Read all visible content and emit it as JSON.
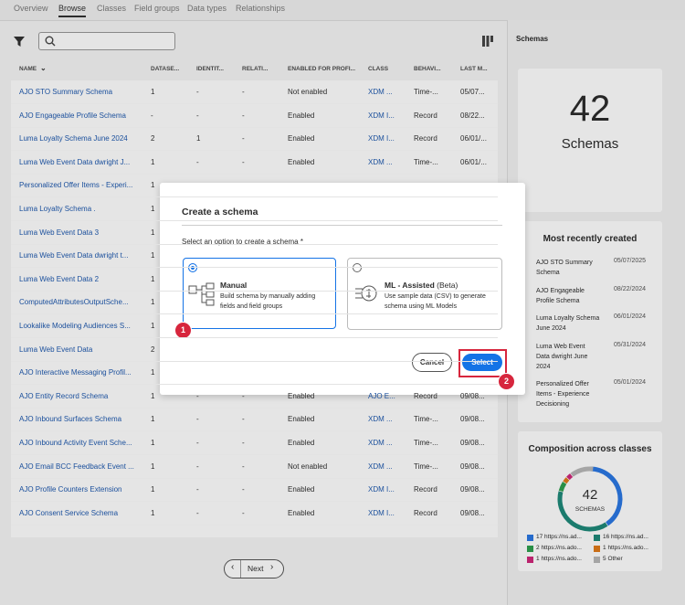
{
  "tabs": [
    "Overview",
    "Browse",
    "Classes",
    "Field groups",
    "Data types",
    "Relationships"
  ],
  "table": {
    "headers": [
      "NAME",
      "DATASE...",
      "IDENTIT...",
      "RELATI...",
      "ENABLED FOR PROFI...",
      "CLASS",
      "BEHAVI...",
      "LAST M..."
    ],
    "rows": [
      [
        "AJO STO Summary Schema",
        "1",
        "-",
        "-",
        "Not enabled",
        "XDM ...",
        "Time-...",
        "05/07..."
      ],
      [
        "AJO Engageable Profile Schema",
        "-",
        "-",
        "-",
        "Enabled",
        "XDM I...",
        "Record",
        "08/22..."
      ],
      [
        "Luma Loyalty Schema June 2024",
        "2",
        "1",
        "-",
        "Enabled",
        "XDM I...",
        "Record",
        "06/01/..."
      ],
      [
        "Luma Web Event Data dwright J...",
        "1",
        "-",
        "-",
        "Enabled",
        "XDM ...",
        "Time-...",
        "06/01/..."
      ],
      [
        "Personalized Offer Items - Experi...",
        "1"
      ],
      [
        "Luma Loyalty Schema .",
        "1"
      ],
      [
        "Luma Web Event Data 3",
        "1"
      ],
      [
        "Luma Web Event Data dwright t...",
        "1"
      ],
      [
        "Luma Web Event Data 2",
        "1"
      ],
      [
        "ComputedAttributesOutputSche...",
        "1"
      ],
      [
        "Lookalike Modeling Audiences S...",
        "1"
      ],
      [
        "Luma Web Event Data",
        "2"
      ],
      [
        "AJO Interactive Messaging Profil...",
        "1"
      ],
      [
        "AJO Entity Record Schema",
        "1",
        "-",
        "-",
        "Enabled",
        "AJO E...",
        "Record",
        "09/08..."
      ],
      [
        "AJO Inbound Surfaces Schema",
        "1",
        "-",
        "-",
        "Enabled",
        "XDM ...",
        "Time-...",
        "09/08..."
      ],
      [
        "AJO Inbound Activity Event Sche...",
        "1",
        "-",
        "-",
        "Enabled",
        "XDM ...",
        "Time-...",
        "09/08..."
      ],
      [
        "AJO Email BCC Feedback Event ...",
        "1",
        "-",
        "-",
        "Not enabled",
        "XDM ...",
        "Time-...",
        "09/08..."
      ],
      [
        "AJO Profile Counters Extension",
        "1",
        "-",
        "-",
        "Enabled",
        "XDM I...",
        "Record",
        "09/08..."
      ],
      [
        "AJO Consent Service Schema",
        "1",
        "-",
        "-",
        "Enabled",
        "XDM I...",
        "Record",
        "09/08..."
      ]
    ]
  },
  "pagination": {
    "next": "Next"
  },
  "sidebar": {
    "title": "Schemas",
    "count": "42",
    "count_label": "Schemas",
    "recent": {
      "title": "Most recently created",
      "items": [
        {
          "name": "AJO STO Summary Schema",
          "date": "05/07/2025"
        },
        {
          "name": "AJO Engageable Profile Schema",
          "date": "08/22/2024"
        },
        {
          "name": "Luma Loyalty Schema June 2024",
          "date": "06/01/2024"
        },
        {
          "name": "Luma Web Event Data dwright June 2024",
          "date": "05/31/2024"
        },
        {
          "name": "Personalized Offer Items - Experience Decisioning",
          "date": "05/01/2024"
        }
      ]
    },
    "composition": {
      "title": "Composition across classes",
      "total": "42",
      "total_label": "SCHEMAS",
      "items": [
        {
          "value": 17,
          "label": "https://ns.ad...",
          "color": "#2b78e4"
        },
        {
          "value": 16,
          "label": "https://ns.ad...",
          "color": "#1f8a7a"
        },
        {
          "value": 2,
          "label": "https://ns.ado...",
          "color": "#2ea04f"
        },
        {
          "value": 1,
          "label": "https://ns.ado...",
          "color": "#e07b1a"
        },
        {
          "value": 1,
          "label": "https://ns.ado...",
          "color": "#d0277a"
        },
        {
          "value": 5,
          "label": "Other",
          "color": "#b8b8b8"
        }
      ]
    }
  },
  "modal": {
    "title": "Create a schema",
    "prompt": "Select an option to create a schema",
    "required": "*",
    "options": [
      {
        "title": "Manual",
        "description": "Build schema by manually adding fields and field groups"
      },
      {
        "title": "ML - Assisted",
        "tag": "(Beta)",
        "description": "Use sample data (CSV) to generate schema using ML Models"
      }
    ],
    "cancel": "Cancel",
    "select": "Select",
    "callouts": [
      "1",
      "2"
    ]
  }
}
